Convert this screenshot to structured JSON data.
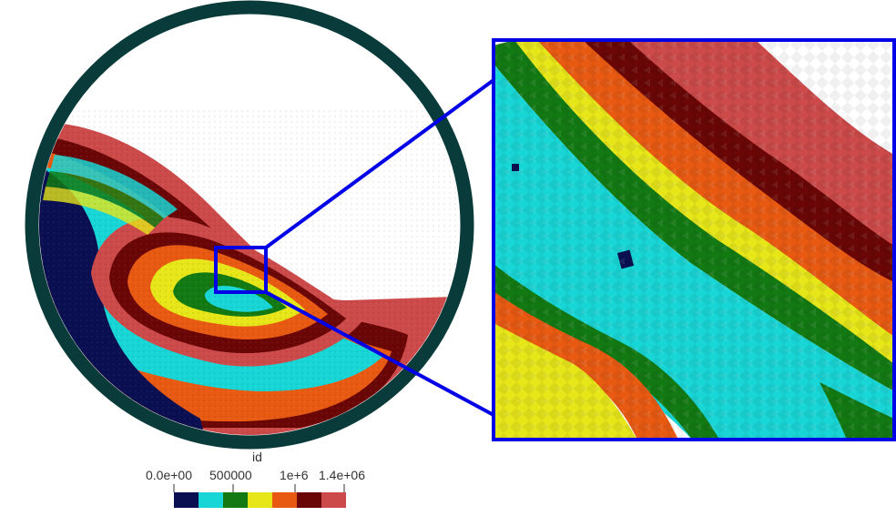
{
  "legend": {
    "title": "id",
    "tick_labels": [
      "0.0e+00",
      "500000",
      "1e+6",
      "1.4e+06"
    ],
    "bins": [
      {
        "color": "#0a0f52"
      },
      {
        "color": "#19d6d6"
      },
      {
        "color": "#137a13"
      },
      {
        "color": "#e6e619"
      },
      {
        "color": "#e85a12"
      },
      {
        "color": "#6a0606"
      },
      {
        "color": "#cc4a4a"
      }
    ]
  },
  "colors": {
    "drum_rim": "#0a3b3b",
    "zoom_box": "#0000e6",
    "background": "#ffffff"
  }
}
